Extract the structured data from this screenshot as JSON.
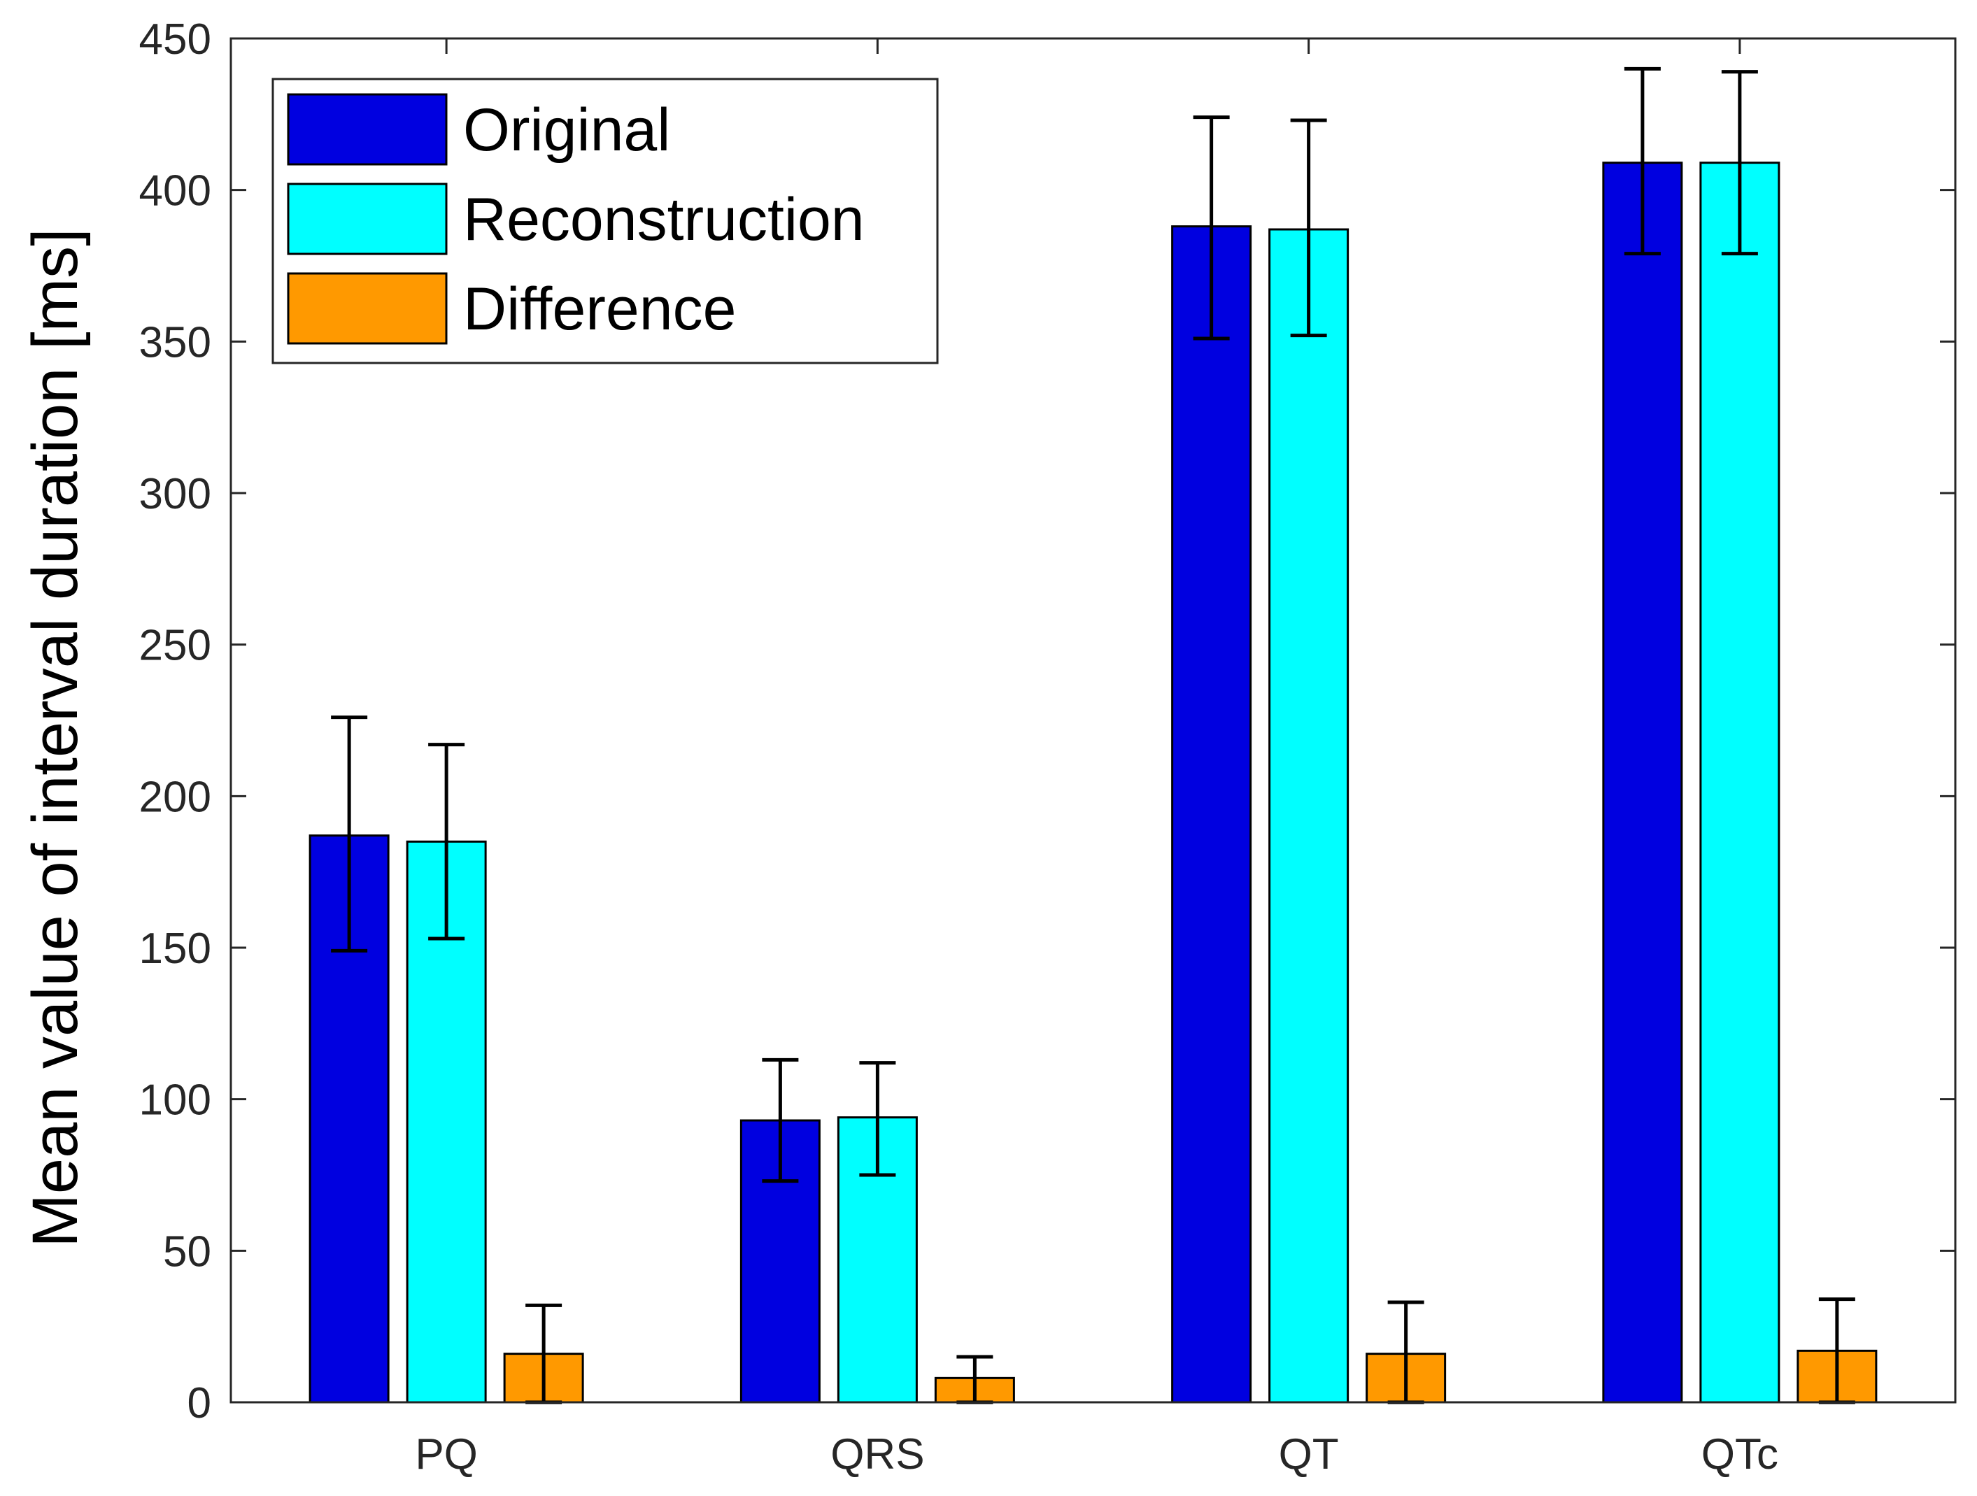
{
  "chart_data": {
    "type": "bar",
    "title": "",
    "xlabel": "",
    "ylabel": "Mean value of interval duration [ms]",
    "categories": [
      "PQ",
      "QRS",
      "QT",
      "QTc"
    ],
    "ylim": [
      0,
      450
    ],
    "yticks": [
      0,
      50,
      100,
      150,
      200,
      250,
      300,
      350,
      400,
      450
    ],
    "grid": false,
    "legend_position": "top-left",
    "series": [
      {
        "name": "Original",
        "color": "#0000e0",
        "values": [
          187,
          93,
          388,
          409
        ],
        "err_low": [
          149,
          73,
          351,
          379
        ],
        "err_high": [
          226,
          113,
          424,
          440
        ]
      },
      {
        "name": "Reconstruction",
        "color": "#00ffff",
        "values": [
          185,
          94,
          387,
          409
        ],
        "err_low": [
          153,
          75,
          352,
          379
        ],
        "err_high": [
          217,
          112,
          423,
          439
        ]
      },
      {
        "name": "Difference",
        "color": "#ff9900",
        "values": [
          16,
          8,
          16,
          17
        ],
        "err_low": [
          0,
          0,
          0,
          0
        ],
        "err_high": [
          32,
          15,
          33,
          34
        ]
      }
    ]
  }
}
